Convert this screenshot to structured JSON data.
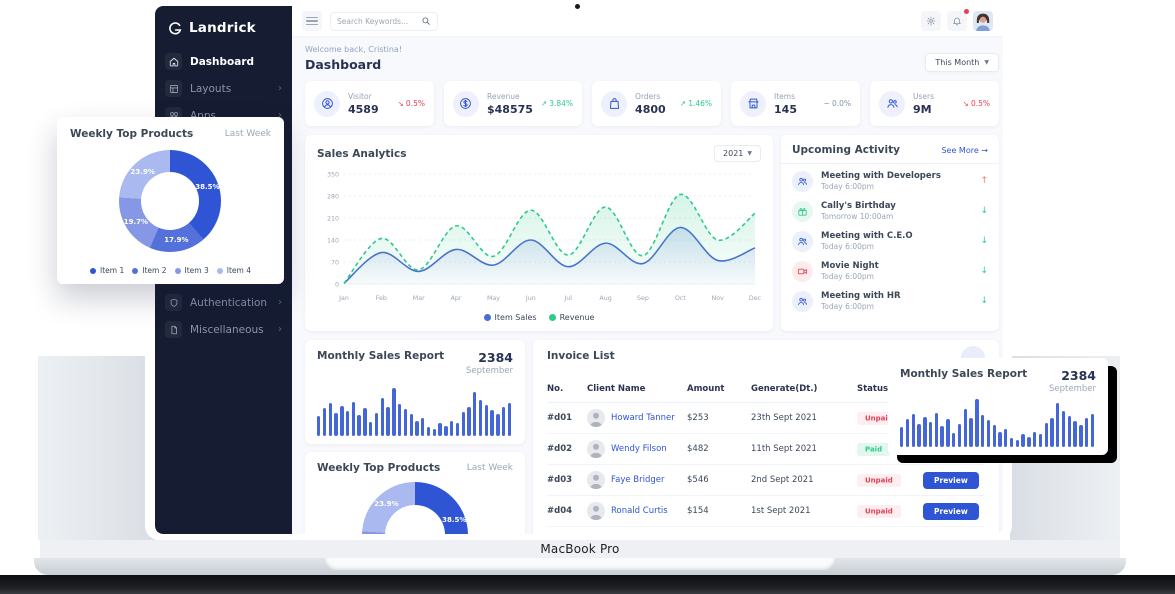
{
  "device": {
    "label": "MacBook Pro"
  },
  "brand": {
    "name": "Landrick"
  },
  "sidebar": {
    "items": [
      {
        "label": "Dashboard",
        "icon": "home-icon",
        "active": true,
        "chevron": false
      },
      {
        "label": "Layouts",
        "icon": "layout-icon",
        "active": false,
        "chevron": true
      },
      {
        "label": "Apps",
        "icon": "apps-icon",
        "active": false,
        "chevron": true
      },
      {
        "label": "Authentication",
        "icon": "shield-icon",
        "active": false,
        "chevron": true
      },
      {
        "label": "Miscellaneous",
        "icon": "file-icon",
        "active": false,
        "chevron": true
      }
    ]
  },
  "topbar": {
    "search_placeholder": "Search Keywords..."
  },
  "page_header": {
    "welcome": "Welcome back, Cristina!",
    "title": "Dashboard",
    "period": "This Month"
  },
  "stats": [
    {
      "label": "Visitor",
      "value": "4589",
      "trend": "0.5%",
      "direction": "down",
      "icon": "visitor-icon"
    },
    {
      "label": "Revenue",
      "value": "$48575",
      "trend": "3.84%",
      "direction": "up",
      "icon": "dollar-icon"
    },
    {
      "label": "Orders",
      "value": "4800",
      "trend": "1.46%",
      "direction": "up",
      "icon": "bag-icon"
    },
    {
      "label": "Items",
      "value": "145",
      "trend": "0.0%",
      "direction": "flat",
      "icon": "store-icon"
    },
    {
      "label": "Users",
      "value": "9M",
      "trend": "0.5%",
      "direction": "down",
      "icon": "users-icon"
    }
  ],
  "sales_analytics": {
    "year": "2021"
  },
  "upcoming_activity": {
    "title": "Upcoming Activity",
    "see_more": "See More",
    "items": [
      {
        "title": "Meeting with Developers",
        "time": "Today 6:00pm",
        "icon": "users-icon",
        "tone": "blue",
        "trend": "up"
      },
      {
        "title": "Cally's Birthday",
        "time": "Tomorrow 10:00am",
        "icon": "gift-icon",
        "tone": "green",
        "trend": "down"
      },
      {
        "title": "Meeting with C.E.O",
        "time": "Today 6:00pm",
        "icon": "users-icon",
        "tone": "blue",
        "trend": "down"
      },
      {
        "title": "Movie Night",
        "time": "Today 6:00pm",
        "icon": "video-icon",
        "tone": "red",
        "trend": "down"
      },
      {
        "title": "Meeting with HR",
        "time": "Today 6:00pm",
        "icon": "users-icon",
        "tone": "blue",
        "trend": "down"
      }
    ]
  },
  "invoice_list": {
    "title": "Invoice List",
    "columns": [
      "No.",
      "Client Name",
      "Amount",
      "Generate(Dt.)",
      "Status",
      ""
    ],
    "action_label": "Preview",
    "rows": [
      {
        "no": "#d01",
        "client": "Howard Tanner",
        "amount": "$253",
        "date": "23th Sept 2021",
        "status": "Unpaid"
      },
      {
        "no": "#d02",
        "client": "Wendy Filson",
        "amount": "$482",
        "date": "11th Sept 2021",
        "status": "Paid"
      },
      {
        "no": "#d03",
        "client": "Faye Bridger",
        "amount": "$546",
        "date": "2nd Sept 2021",
        "status": "Unpaid"
      },
      {
        "no": "#d04",
        "client": "Ronald Curtis",
        "amount": "$154",
        "date": "1st Sept 2021",
        "status": "Unpaid"
      }
    ]
  },
  "colors": {
    "primary": "#2f55d4",
    "success": "#2eca8b",
    "danger": "#e43f52",
    "warning": "#f0735a",
    "sidebar": "#161d32"
  },
  "chart_data": [
    {
      "id": "sales_analytics",
      "type": "line",
      "title": "Sales Analytics",
      "x": [
        "Jan",
        "Feb",
        "Mar",
        "Apr",
        "May",
        "Jun",
        "Jul",
        "Aug",
        "Sep",
        "Oct",
        "Nov",
        "Dec"
      ],
      "series": [
        {
          "name": "Item Sales",
          "color": "#4a6cd4",
          "line_style": "solid",
          "values": [
            2,
            100,
            40,
            110,
            60,
            140,
            55,
            130,
            65,
            180,
            75,
            115
          ]
        },
        {
          "name": "Revenue",
          "color": "#2eca8b",
          "line_style": "dashed",
          "values": [
            2,
            145,
            45,
            185,
            88,
            235,
            92,
            245,
            90,
            285,
            140,
            225
          ]
        }
      ],
      "ylim": [
        0,
        350
      ],
      "yticks": [
        0,
        70,
        140,
        210,
        280,
        350
      ],
      "grid": true,
      "legend_position": "bottom"
    },
    {
      "id": "monthly_sales_report",
      "type": "bar",
      "title": "Monthly Sales Report",
      "total": "2384",
      "subtitle": "September",
      "color": "#4466d6",
      "values": [
        40,
        56,
        66,
        46,
        60,
        50,
        68,
        42,
        56,
        28,
        46,
        76,
        58,
        96,
        64,
        54,
        44,
        30,
        36,
        18,
        14,
        26,
        20,
        30,
        26,
        48,
        58,
        88,
        72,
        62,
        52,
        44,
        58,
        66
      ]
    },
    {
      "id": "weekly_top_products",
      "type": "donut",
      "title": "Weekly Top Products",
      "subtitle": "Last Week",
      "labels": [
        "Item 1",
        "Item 2",
        "Item 3",
        "Item 4"
      ],
      "values": [
        38.5,
        17.9,
        19.7,
        23.9
      ],
      "colors": [
        "#2f55d4",
        "#5470da",
        "#8697e6",
        "#aab9ef"
      ]
    }
  ]
}
